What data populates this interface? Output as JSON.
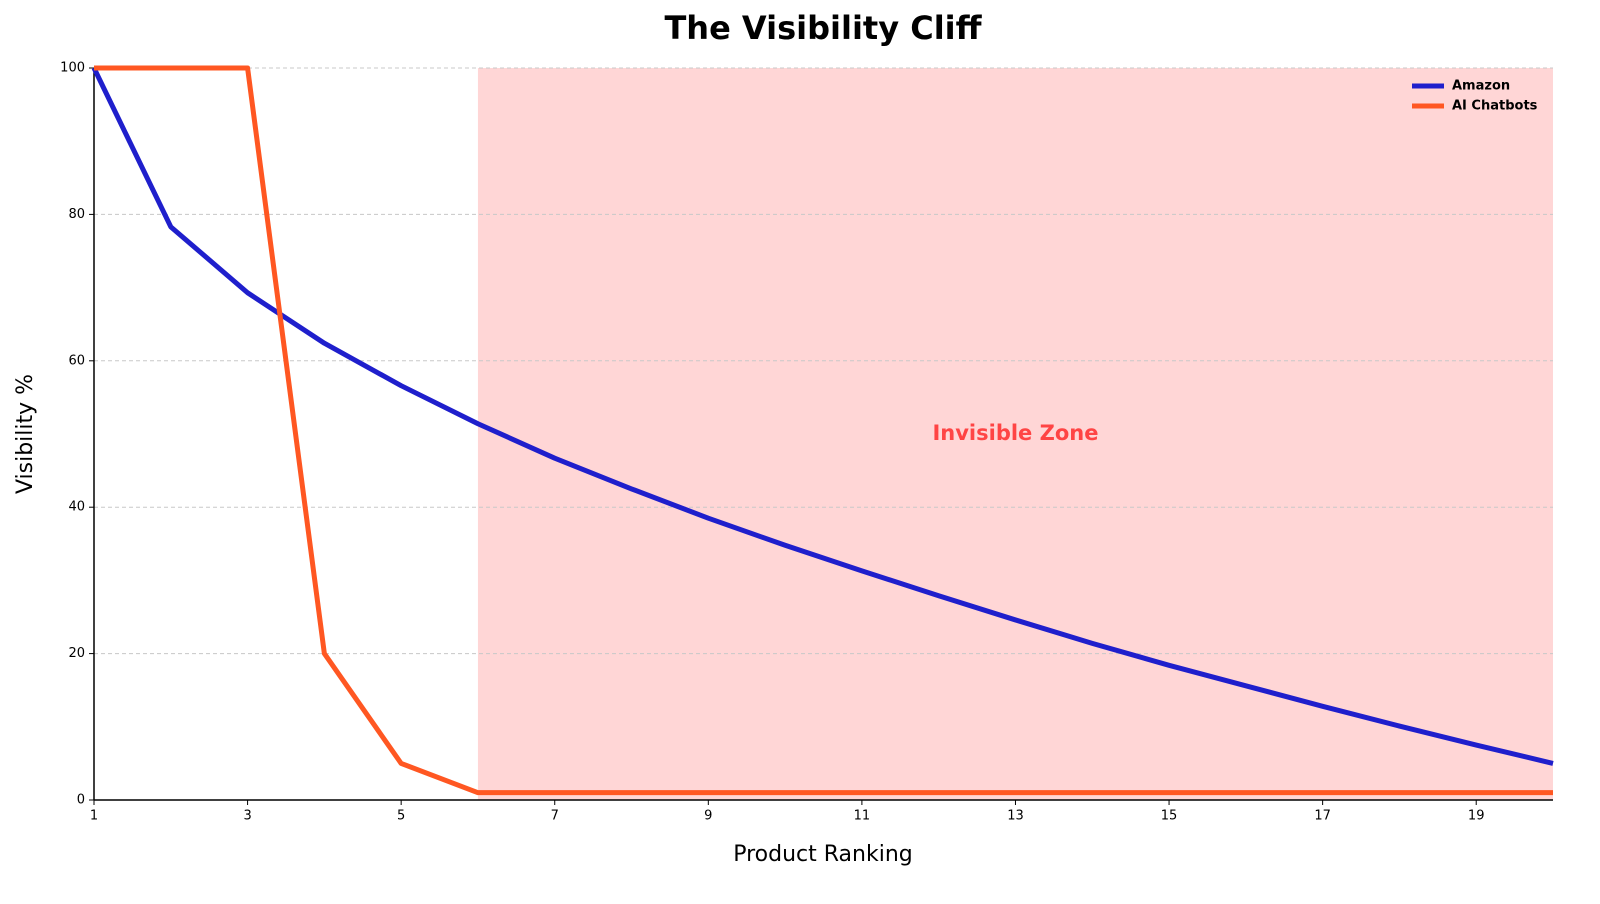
{
  "chart_data": {
    "type": "line",
    "title": "The Visibility Cliff",
    "x_label": "Product Ranking",
    "y_label": "Visibility %",
    "x": [
      1,
      2,
      3,
      4,
      5,
      6,
      7,
      8,
      9,
      10,
      11,
      12,
      13,
      14,
      15,
      16,
      17,
      18,
      19,
      20
    ],
    "series": [
      {
        "name": "Amazon",
        "color": "#1f1fcc",
        "values": [
          100,
          78.3,
          69.3,
          62.4,
          56.6,
          51.4,
          46.7,
          42.5,
          38.5,
          34.8,
          31.3,
          27.9,
          24.6,
          21.4,
          18.4,
          15.6,
          12.8,
          10.1,
          7.5,
          5
        ]
      },
      {
        "name": "AI Chatbots",
        "color": "#ff5722",
        "values": [
          100,
          100,
          100,
          20,
          5,
          1,
          1,
          1,
          1,
          1,
          1,
          1,
          1,
          1,
          1,
          1,
          1,
          1,
          1,
          1
        ]
      }
    ],
    "shaded_region": {
      "x": [
        6,
        20
      ],
      "color": "#ffd6d6"
    },
    "annotation": {
      "text": "Invisible Zone",
      "x": 13,
      "y": 50,
      "color": "#ff4444"
    },
    "xlim": [
      1,
      20
    ],
    "xticks": [
      1,
      3,
      5,
      7,
      9,
      11,
      13,
      15,
      17,
      19
    ],
    "ylim": [
      0,
      100
    ],
    "yticks": [
      0,
      20,
      40,
      60,
      80,
      100
    ],
    "grid": true,
    "legend": "upper-right"
  }
}
